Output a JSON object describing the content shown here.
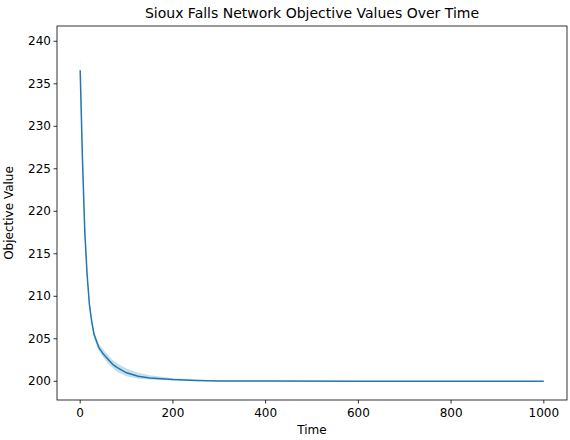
{
  "chart_data": {
    "type": "line",
    "title": "Sioux Falls Network Objective Values Over Time",
    "x_label": "Time",
    "y_label": "Objective Value",
    "x": [
      0,
      5,
      10,
      15,
      20,
      25,
      30,
      40,
      50,
      60,
      70,
      80,
      100,
      125,
      150,
      200,
      250,
      300,
      400,
      600,
      800,
      1000
    ],
    "series": [
      {
        "color": "#1f77b4",
        "values": [
          236.6,
          226.0,
          217.5,
          212.5,
          209.0,
          207.0,
          205.5,
          204.0,
          203.2,
          202.6,
          202.0,
          201.6,
          201.0,
          200.6,
          200.4,
          200.2,
          200.1,
          200.05,
          200.05,
          200.02,
          200.0,
          200.0
        ],
        "lower": [
          235.2,
          225.0,
          216.8,
          212.0,
          208.6,
          206.6,
          205.1,
          203.6,
          202.8,
          202.1,
          201.6,
          201.1,
          200.6,
          200.3,
          200.2,
          200.1,
          200.05,
          200.0,
          200.0,
          200.0,
          199.98,
          199.98
        ],
        "upper": [
          238.1,
          227.0,
          218.2,
          213.0,
          209.4,
          207.4,
          205.9,
          204.4,
          203.7,
          203.1,
          202.5,
          202.1,
          201.5,
          201.0,
          200.7,
          200.35,
          200.2,
          200.1,
          200.1,
          200.05,
          200.02,
          200.02
        ]
      }
    ],
    "xlim": [
      -50,
      1050
    ],
    "xticks": [
      0,
      200,
      400,
      600,
      800,
      1000
    ],
    "ylim": [
      197.8,
      241.8
    ],
    "yticks": [
      200,
      205,
      210,
      215,
      220,
      225,
      230,
      235,
      240
    ]
  }
}
